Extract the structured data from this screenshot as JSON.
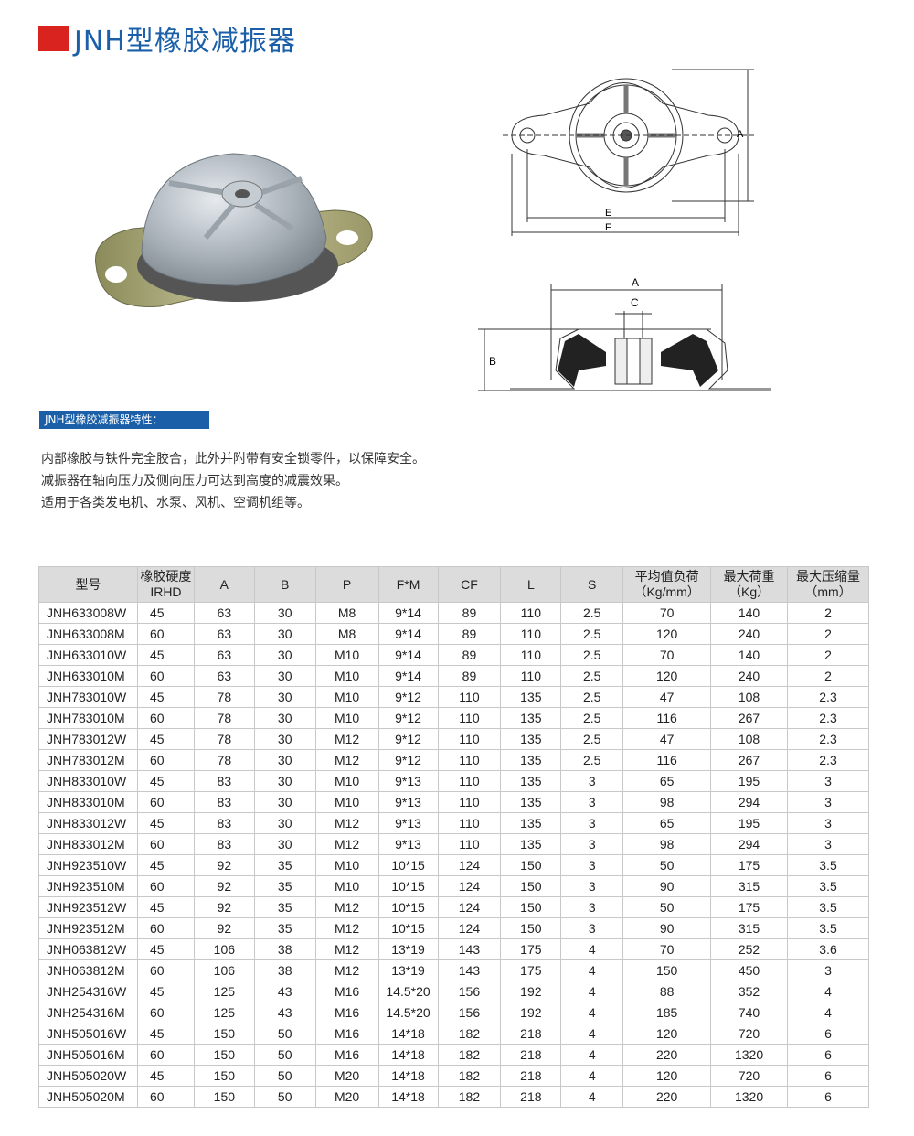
{
  "title": "JNH型橡胶减振器",
  "colors": {
    "accent_red": "#d9231e",
    "brand_blue": "#1a5fa8",
    "header_gray": "#dcdcdc"
  },
  "drawing_labels": {
    "top_A": "A",
    "top_E": "E",
    "top_F": "F",
    "sec_A": "A",
    "sec_C": "C",
    "sec_B": "B"
  },
  "features_tag": "JNH型橡胶减振器特性：",
  "features": [
    "内部橡胶与铁件完全胶合，此外并附带有安全锁零件，以保障安全。",
    "减振器在轴向压力及侧向压力可达到高度的减震效果。",
    "适用于各类发电机、水泵、风机、空调机组等。"
  ],
  "table": {
    "headers": [
      [
        "型号"
      ],
      [
        "橡胶硬度",
        "IRHD"
      ],
      [
        "A"
      ],
      [
        "B"
      ],
      [
        "P"
      ],
      [
        "F*M"
      ],
      [
        "CF"
      ],
      [
        "L"
      ],
      [
        "S"
      ],
      [
        "平均值负荷",
        "（Kg/mm）"
      ],
      [
        "最大荷重",
        "（Kg）"
      ],
      [
        "最大压缩量",
        "（mm）"
      ]
    ],
    "rows": [
      [
        "JNH633008W",
        "45",
        "63",
        "30",
        "M8",
        "9*14",
        "89",
        "110",
        "2.5",
        "70",
        "140",
        "2"
      ],
      [
        "JNH633008M",
        "60",
        "63",
        "30",
        "M8",
        "9*14",
        "89",
        "110",
        "2.5",
        "120",
        "240",
        "2"
      ],
      [
        "JNH633010W",
        "45",
        "63",
        "30",
        "M10",
        "9*14",
        "89",
        "110",
        "2.5",
        "70",
        "140",
        "2"
      ],
      [
        "JNH633010M",
        "60",
        "63",
        "30",
        "M10",
        "9*14",
        "89",
        "110",
        "2.5",
        "120",
        "240",
        "2"
      ],
      [
        "JNH783010W",
        "45",
        "78",
        "30",
        "M10",
        "9*12",
        "110",
        "135",
        "2.5",
        "47",
        "108",
        "2.3"
      ],
      [
        "JNH783010M",
        "60",
        "78",
        "30",
        "M10",
        "9*12",
        "110",
        "135",
        "2.5",
        "116",
        "267",
        "2.3"
      ],
      [
        "JNH783012W",
        "45",
        "78",
        "30",
        "M12",
        "9*12",
        "110",
        "135",
        "2.5",
        "47",
        "108",
        "2.3"
      ],
      [
        "JNH783012M",
        "60",
        "78",
        "30",
        "M12",
        "9*12",
        "110",
        "135",
        "2.5",
        "116",
        "267",
        "2.3"
      ],
      [
        "JNH833010W",
        "45",
        "83",
        "30",
        "M10",
        "9*13",
        "110",
        "135",
        "3",
        "65",
        "195",
        "3"
      ],
      [
        "JNH833010M",
        "60",
        "83",
        "30",
        "M10",
        "9*13",
        "110",
        "135",
        "3",
        "98",
        "294",
        "3"
      ],
      [
        "JNH833012W",
        "45",
        "83",
        "30",
        "M12",
        "9*13",
        "110",
        "135",
        "3",
        "65",
        "195",
        "3"
      ],
      [
        "JNH833012M",
        "60",
        "83",
        "30",
        "M12",
        "9*13",
        "110",
        "135",
        "3",
        "98",
        "294",
        "3"
      ],
      [
        "JNH923510W",
        "45",
        "92",
        "35",
        "M10",
        "10*15",
        "124",
        "150",
        "3",
        "50",
        "175",
        "3.5"
      ],
      [
        "JNH923510M",
        "60",
        "92",
        "35",
        "M10",
        "10*15",
        "124",
        "150",
        "3",
        "90",
        "315",
        "3.5"
      ],
      [
        "JNH923512W",
        "45",
        "92",
        "35",
        "M12",
        "10*15",
        "124",
        "150",
        "3",
        "50",
        "175",
        "3.5"
      ],
      [
        "JNH923512M",
        "60",
        "92",
        "35",
        "M12",
        "10*15",
        "124",
        "150",
        "3",
        "90",
        "315",
        "3.5"
      ],
      [
        "JNH063812W",
        "45",
        "106",
        "38",
        "M12",
        "13*19",
        "143",
        "175",
        "4",
        "70",
        "252",
        "3.6"
      ],
      [
        "JNH063812M",
        "60",
        "106",
        "38",
        "M12",
        "13*19",
        "143",
        "175",
        "4",
        "150",
        "450",
        "3"
      ],
      [
        "JNH254316W",
        "45",
        "125",
        "43",
        "M16",
        "14.5*20",
        "156",
        "192",
        "4",
        "88",
        "352",
        "4"
      ],
      [
        "JNH254316M",
        "60",
        "125",
        "43",
        "M16",
        "14.5*20",
        "156",
        "192",
        "4",
        "185",
        "740",
        "4"
      ],
      [
        "JNH505016W",
        "45",
        "150",
        "50",
        "M16",
        "14*18",
        "182",
        "218",
        "4",
        "120",
        "720",
        "6"
      ],
      [
        "JNH505016M",
        "60",
        "150",
        "50",
        "M16",
        "14*18",
        "182",
        "218",
        "4",
        "220",
        "1320",
        "6"
      ],
      [
        "JNH505020W",
        "45",
        "150",
        "50",
        "M20",
        "14*18",
        "182",
        "218",
        "4",
        "120",
        "720",
        "6"
      ],
      [
        "JNH505020M",
        "60",
        "150",
        "50",
        "M20",
        "14*18",
        "182",
        "218",
        "4",
        "220",
        "1320",
        "6"
      ]
    ]
  }
}
